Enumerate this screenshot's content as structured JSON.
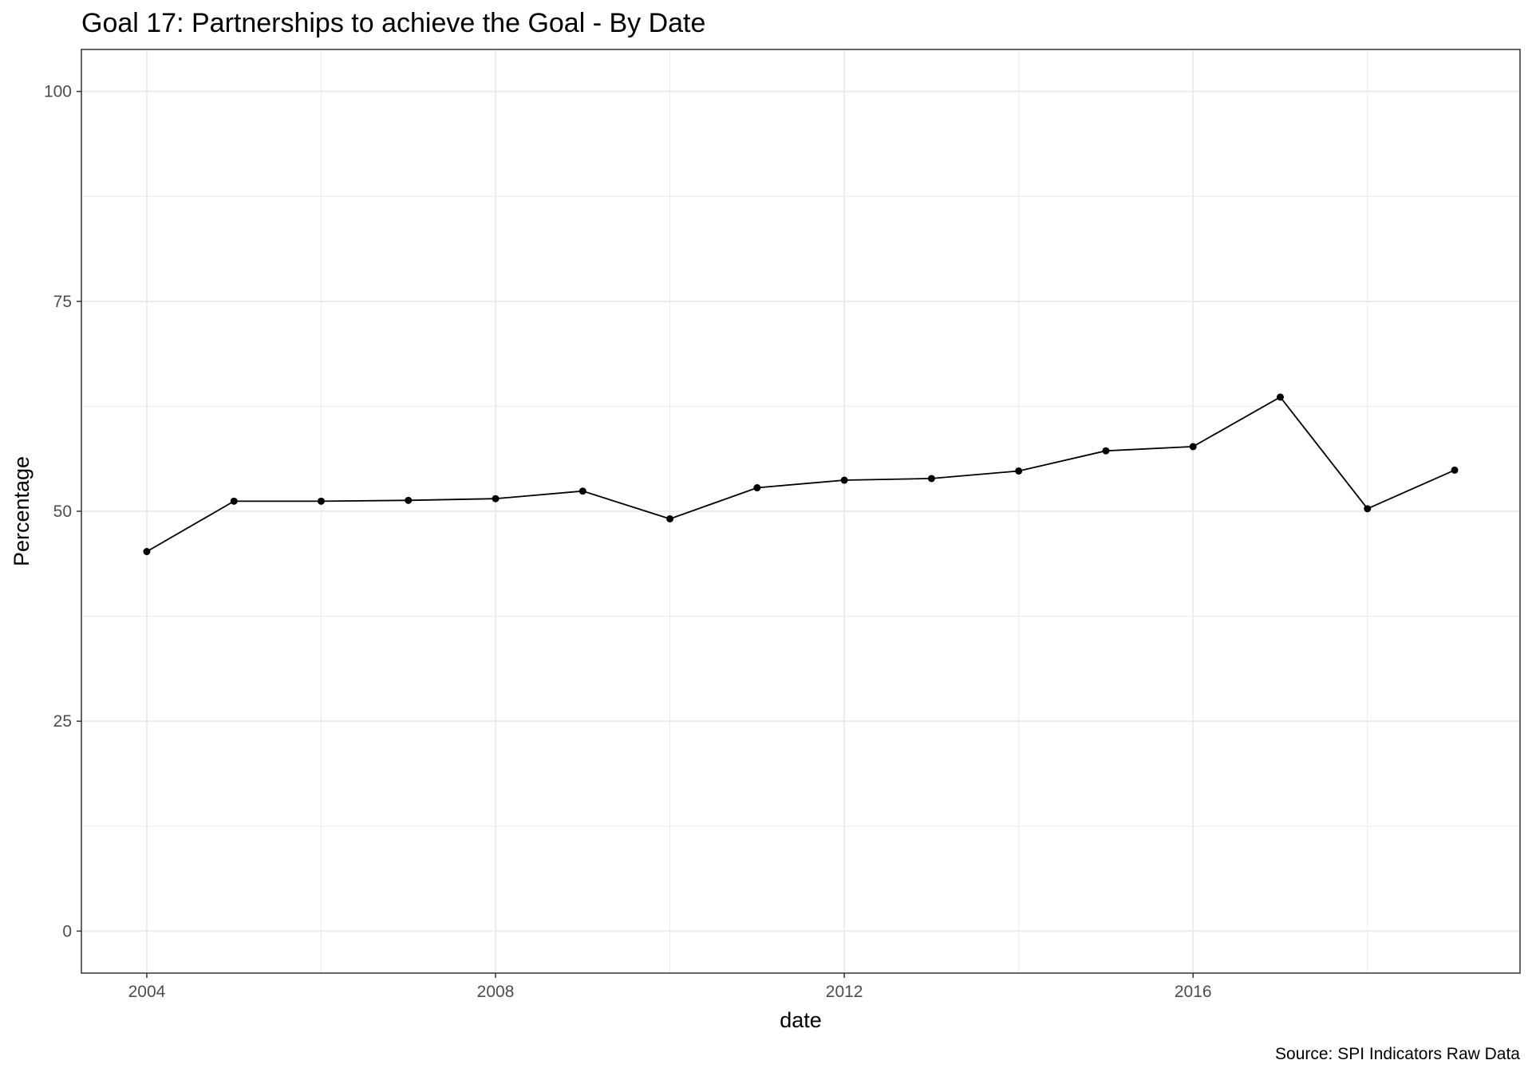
{
  "chart_data": {
    "type": "line",
    "title": "Goal 17: Partnerships to achieve the Goal - By Date",
    "xlabel": "date",
    "ylabel": "Percentage",
    "caption": "Source: SPI Indicators Raw Data",
    "xlim": [
      2003.25,
      2019.75
    ],
    "ylim": [
      -5,
      105
    ],
    "x_ticks": [
      2004,
      2008,
      2012,
      2016
    ],
    "x_tick_labels": [
      "2004",
      "2008",
      "2012",
      "2016"
    ],
    "y_ticks": [
      0,
      25,
      50,
      75,
      100
    ],
    "y_tick_labels": [
      "0",
      "25",
      "50",
      "75",
      "100"
    ],
    "grid": true,
    "legend": "none",
    "series": [
      {
        "x": [
          2004,
          2005,
          2006,
          2007,
          2008,
          2009,
          2010,
          2011,
          2012,
          2013,
          2014,
          2015,
          2016,
          2017,
          2018,
          2019
        ],
        "y": [
          45.2,
          51.2,
          51.2,
          51.3,
          51.5,
          52.4,
          49.1,
          52.8,
          53.7,
          53.9,
          54.8,
          57.2,
          57.7,
          63.6,
          50.3,
          54.9
        ]
      }
    ],
    "colors": {
      "line": "#000000",
      "point": "#000000",
      "grid": "#ebebeb",
      "panel_border": "#333333"
    }
  }
}
